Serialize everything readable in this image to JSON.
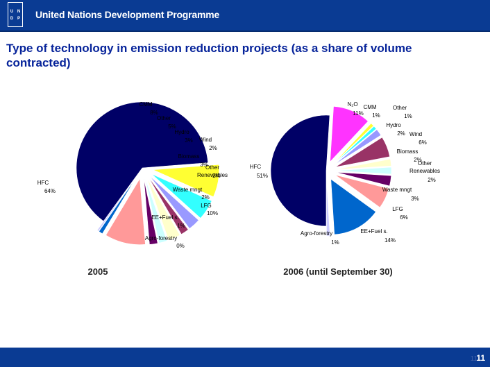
{
  "header": {
    "org_name": "United Nations Development Programme",
    "logo_letters": [
      "U",
      "N",
      "D",
      "P"
    ]
  },
  "slide": {
    "title": "Type of technology in emission reduction projects (as a share of volume contracted)",
    "page_number": "11",
    "page_number_shadow": "11"
  },
  "colors": {
    "header_bg": "#0a3b93",
    "title": "#06239a"
  },
  "chart_data": [
    {
      "type": "pie",
      "caption": "2005",
      "slices": [
        {
          "label": "HFC",
          "value": 64
        },
        {
          "label": "CMM",
          "value": 8
        },
        {
          "label": "Other",
          "value": 5
        },
        {
          "label": "Hydro",
          "value": 3
        },
        {
          "label": "Wind",
          "value": 2
        },
        {
          "label": "Biomass",
          "value": 3
        },
        {
          "label": "Other Renewables",
          "value": 2
        },
        {
          "label": "Waste mngt",
          "value": 2
        },
        {
          "label": "LFG",
          "value": 10
        },
        {
          "label": "EE+Fuel s.",
          "value": 1
        },
        {
          "label": "Agro-forestry",
          "value": 0
        }
      ]
    },
    {
      "type": "pie",
      "caption": "2006 (until September 30)",
      "slices": [
        {
          "label": "HFC",
          "value": 51
        },
        {
          "label": "N2O",
          "value": 11
        },
        {
          "label": "CMM",
          "value": 1
        },
        {
          "label": "Other",
          "value": 1
        },
        {
          "label": "Hydro",
          "value": 2
        },
        {
          "label": "Wind",
          "value": 6
        },
        {
          "label": "Biomass",
          "value": 2
        },
        {
          "label": "Other Renewables",
          "value": 2
        },
        {
          "label": "Waste mngt",
          "value": 3
        },
        {
          "label": "LFG",
          "value": 6
        },
        {
          "label": "EE+Fuel s.",
          "value": 14
        },
        {
          "label": "Agro-forestry",
          "value": 1
        }
      ]
    }
  ]
}
